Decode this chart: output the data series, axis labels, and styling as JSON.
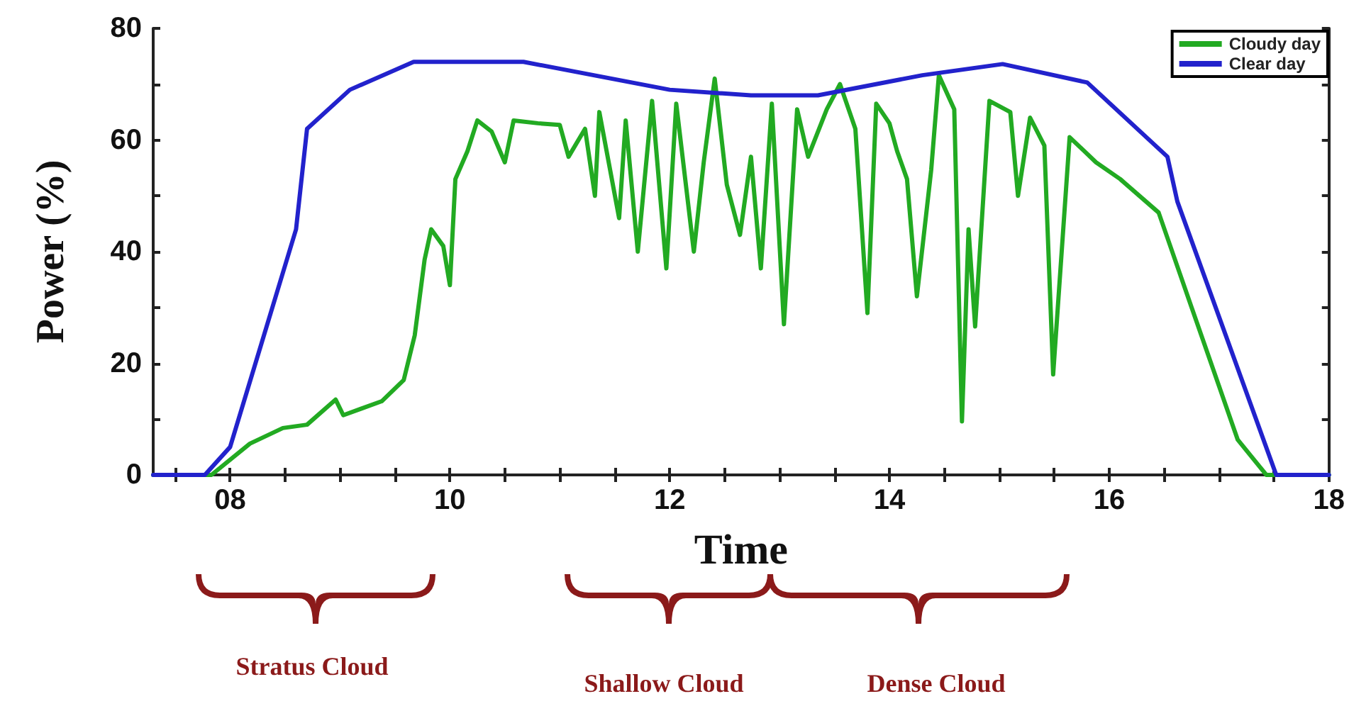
{
  "chart_data": {
    "type": "line",
    "xlabel": "Time",
    "ylabel": "Power (%)",
    "xlim": [
      7.3,
      18
    ],
    "xticks": [
      {
        "value": 7.5,
        "label": null
      },
      {
        "value": 8,
        "label": "08"
      },
      {
        "value": 8.5,
        "label": null
      },
      {
        "value": 9,
        "label": null
      },
      {
        "value": 9.5,
        "label": null
      },
      10,
      {
        "value": 10.5,
        "label": null
      },
      {
        "value": 11,
        "label": null
      },
      {
        "value": 11.5,
        "label": null
      },
      12,
      {
        "value": 12.5,
        "label": null
      },
      {
        "value": 13,
        "label": null
      },
      {
        "value": 13.5,
        "label": null
      },
      14,
      {
        "value": 14.5,
        "label": null
      },
      {
        "value": 15,
        "label": null
      },
      {
        "value": 15.5,
        "label": null
      },
      16,
      {
        "value": 16.5,
        "label": null
      },
      {
        "value": 17,
        "label": null
      },
      {
        "value": 17.5,
        "label": null
      },
      18
    ],
    "ylim": [
      0,
      80
    ],
    "yticks": [
      0,
      {
        "value": 10,
        "label": null
      },
      20,
      {
        "value": 30,
        "label": null
      },
      40,
      {
        "value": 50,
        "label": null
      },
      60,
      {
        "value": 70,
        "label": null
      },
      80
    ],
    "grid": false,
    "legend": "top right",
    "marker": "none",
    "line_style": "solid",
    "series": [
      {
        "name": "Cloudy day",
        "color": "#22aa22",
        "x": [
          7.3,
          7.83,
          8.18,
          8.48,
          8.7,
          8.96,
          9.03,
          9.38,
          9.58,
          9.68,
          9.77,
          9.83,
          9.94,
          10.0,
          10.05,
          10.16,
          10.25,
          10.38,
          10.5,
          10.58,
          10.8,
          11.0,
          11.08,
          11.23,
          11.32,
          11.36,
          11.54,
          11.6,
          11.71,
          11.84,
          11.97,
          12.06,
          12.22,
          12.31,
          12.41,
          12.52,
          12.64,
          12.74,
          12.83,
          12.93,
          13.04,
          13.16,
          13.26,
          13.43,
          13.55,
          13.69,
          13.8,
          13.88,
          14.0,
          14.07,
          14.16,
          14.25,
          14.38,
          14.45,
          14.59,
          14.66,
          14.72,
          14.78,
          14.91,
          15.1,
          15.17,
          15.28,
          15.41,
          15.49,
          15.64,
          15.88,
          16.1,
          16.45,
          16.75,
          17.17,
          17.43,
          18
        ],
        "values": [
          0,
          0,
          5.6,
          8.4,
          9,
          13.5,
          10.7,
          13.2,
          17,
          25,
          38.6,
          44,
          41,
          34,
          53,
          58,
          63.5,
          61.5,
          56,
          63.5,
          63,
          62.7,
          57,
          62,
          50,
          65,
          46,
          63.5,
          40,
          67,
          37,
          66.5,
          40,
          56,
          71,
          52,
          43,
          57,
          37,
          66.5,
          27,
          65.5,
          57,
          65.5,
          70,
          62,
          29,
          66.5,
          63,
          58,
          53,
          32,
          54.6,
          71.6,
          65.5,
          9.6,
          44,
          26.6,
          67,
          65,
          50,
          64,
          59,
          18,
          60.5,
          56,
          53,
          47,
          30,
          6.3,
          0,
          0
        ]
      },
      {
        "name": "Clear day",
        "color": "#2222cc",
        "x": [
          7.3,
          7.77,
          8.0,
          8.6,
          8.7,
          9.09,
          9.67,
          10.5,
          10.67,
          12.0,
          12.74,
          13.35,
          14.3,
          15.03,
          15.8,
          16.53,
          16.62,
          17.52,
          18
        ],
        "values": [
          0,
          0,
          5,
          44,
          62,
          69,
          74,
          74,
          74,
          69,
          68,
          68,
          71.6,
          73.6,
          70.3,
          57,
          49,
          0,
          0
        ]
      }
    ],
    "annotations": [
      "Stratus Cloud",
      "Shallow Cloud",
      "Dense Cloud"
    ]
  }
}
